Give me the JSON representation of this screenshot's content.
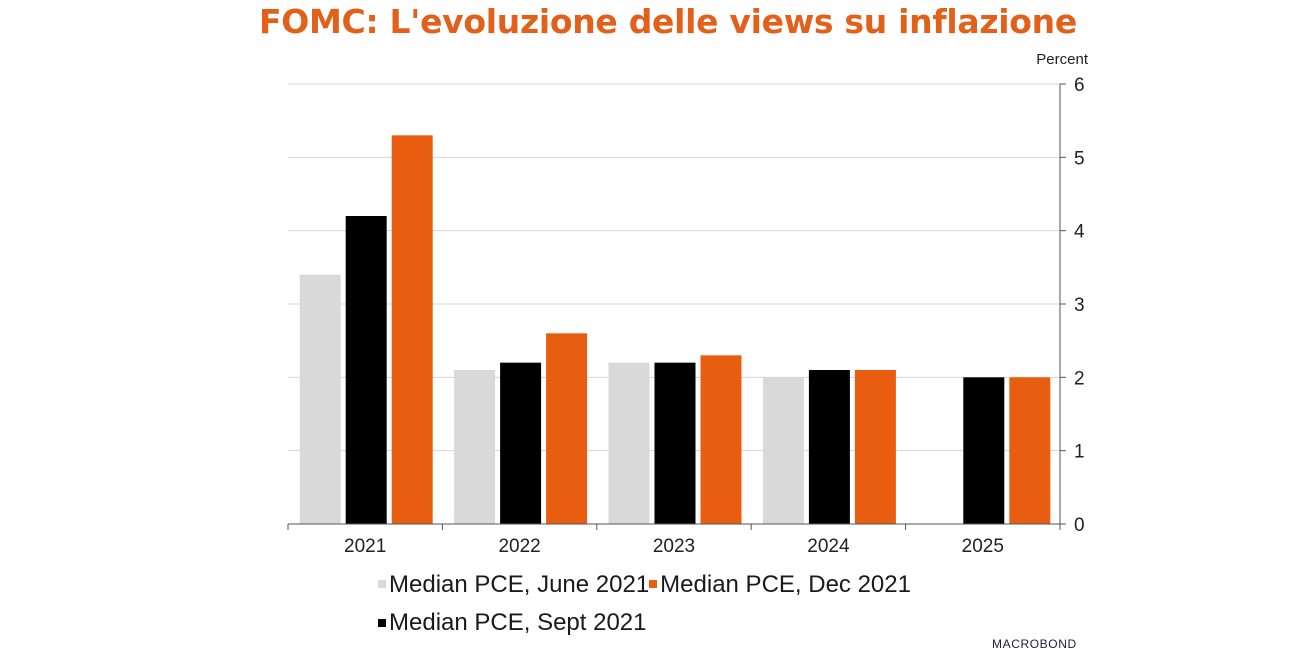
{
  "title": "FOMC: L'evoluzione delle views su inflazione",
  "brand": "MACROBOND",
  "colors": {
    "title": "#e2601a",
    "june": "#d9d9d9",
    "sept": "#000000",
    "dec": "#e85d10",
    "grid": "#d4d4d4",
    "axis": "#555555"
  },
  "chart_data": {
    "type": "bar",
    "categories": [
      "2021",
      "2022",
      "2023",
      "2024",
      "2025"
    ],
    "series": [
      {
        "name": "Median PCE, June 2021",
        "color": "#d9d9d9",
        "values": [
          3.4,
          2.1,
          2.2,
          2.0,
          null
        ]
      },
      {
        "name": "Median PCE, Sept 2021",
        "color": "#000000",
        "values": [
          4.2,
          2.2,
          2.2,
          2.1,
          2.0
        ]
      },
      {
        "name": "Median PCE, Dec 2021",
        "color": "#e85d10",
        "values": [
          5.3,
          2.6,
          2.3,
          2.1,
          2.0
        ]
      }
    ],
    "y_unit": "Percent",
    "ylim": [
      0,
      6
    ],
    "yticks": [
      "0",
      "1",
      "2",
      "3",
      "4",
      "5",
      "6"
    ],
    "y_axis_side": "right",
    "grid": true,
    "legend_placement": "bottom"
  }
}
